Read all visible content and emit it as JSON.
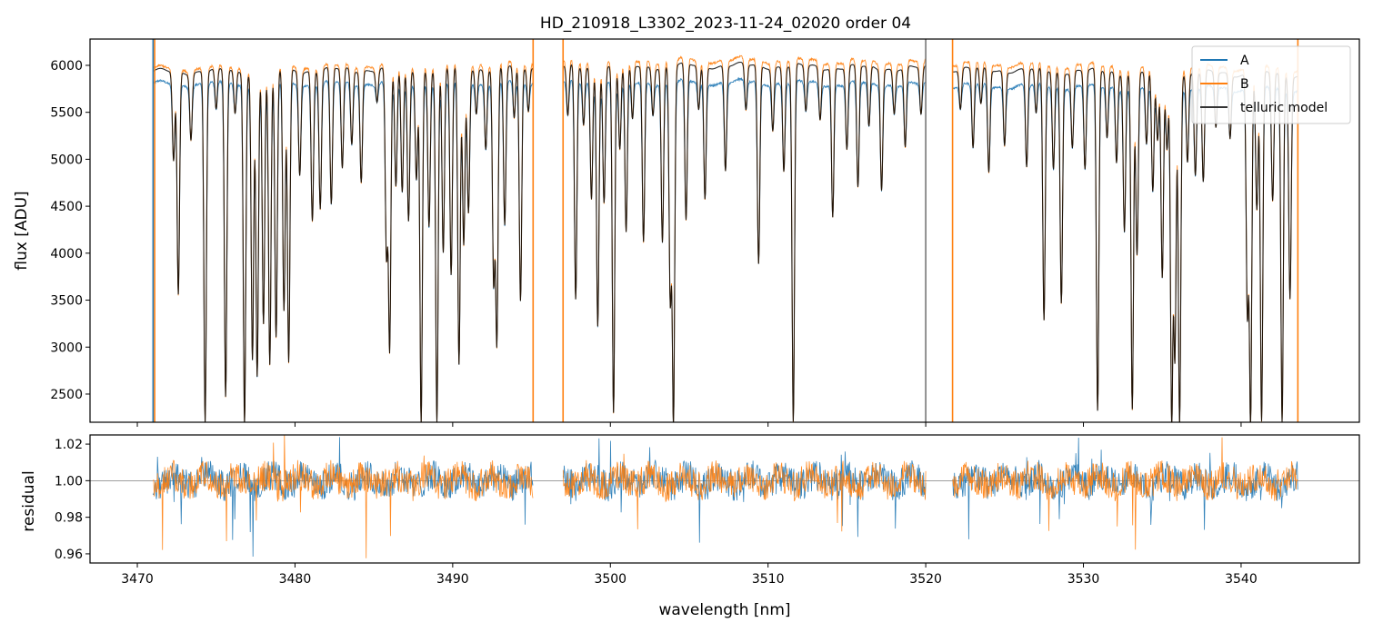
{
  "chart_data": [
    {
      "type": "line",
      "title": "HD_210918_L3302_2023-11-24_02020  order 04",
      "ylabel": "flux [ADU]",
      "xlabel": "",
      "xlim": [
        3467,
        3547.5
      ],
      "ylim": [
        2200,
        6280
      ],
      "yticks": [
        2500,
        3000,
        3500,
        4000,
        4500,
        5000,
        5500,
        6000
      ],
      "ytick_labels": [
        "2500",
        "3000",
        "3500",
        "4000",
        "4500",
        "5000",
        "5500",
        "6000"
      ],
      "legend": {
        "placement": "top-right",
        "entries": [
          "A",
          "B",
          "telluric model"
        ]
      },
      "gaps": [
        [
          3495.1,
          3497.0
        ],
        [
          3520.0,
          3521.7
        ]
      ],
      "series": [
        {
          "name": "A",
          "color": "#1f77b4",
          "continuum_left": 5800,
          "continuum_mid": 5820,
          "continuum_right": 5740
        },
        {
          "name": "B",
          "color": "#ff7f0e",
          "continuum_left": 5960,
          "continuum_mid": 6060,
          "continuum_right": 5960
        },
        {
          "name": "telluric model",
          "color": "#000000",
          "continuum_left": 5930,
          "continuum_mid": 6000,
          "continuum_right": 5900
        }
      ],
      "absorption_lines": [
        [
          3472.3,
          4980
        ],
        [
          3472.6,
          3560
        ],
        [
          3473.4,
          5230
        ],
        [
          3474.3,
          2200
        ],
        [
          3475.0,
          5500
        ],
        [
          3475.6,
          2470
        ],
        [
          3476.2,
          5480
        ],
        [
          3476.8,
          2200
        ],
        [
          3477.3,
          2870
        ],
        [
          3477.6,
          2690
        ],
        [
          3478.0,
          3250
        ],
        [
          3478.4,
          2800
        ],
        [
          3478.8,
          3090
        ],
        [
          3479.3,
          3380
        ],
        [
          3479.6,
          2830
        ],
        [
          3480.3,
          4850
        ],
        [
          3481.1,
          4350
        ],
        [
          3481.6,
          4480
        ],
        [
          3482.3,
          4500
        ],
        [
          3483.0,
          4890
        ],
        [
          3483.6,
          5160
        ],
        [
          3484.2,
          4770
        ],
        [
          3485.2,
          5620
        ],
        [
          3485.8,
          3960
        ],
        [
          3486.0,
          2960
        ],
        [
          3486.4,
          4700
        ],
        [
          3486.8,
          4630
        ],
        [
          3487.2,
          4340
        ],
        [
          3487.7,
          4800
        ],
        [
          3488.0,
          2200
        ],
        [
          3488.5,
          4300
        ],
        [
          3489.0,
          2200
        ],
        [
          3489.4,
          3990
        ],
        [
          3489.9,
          3760
        ],
        [
          3490.4,
          2800
        ],
        [
          3490.7,
          4080
        ],
        [
          3491.0,
          4440
        ],
        [
          3491.5,
          5490
        ],
        [
          3492.1,
          5130
        ],
        [
          3492.6,
          3690
        ],
        [
          3492.8,
          3030
        ],
        [
          3493.3,
          4290
        ],
        [
          3493.9,
          5410
        ],
        [
          3494.3,
          3490
        ],
        [
          3494.8,
          5520
        ],
        [
          3497.3,
          5440
        ],
        [
          3497.8,
          3500
        ],
        [
          3498.3,
          5370
        ],
        [
          3498.8,
          4580
        ],
        [
          3499.2,
          3240
        ],
        [
          3499.6,
          4550
        ],
        [
          3500.2,
          2300
        ],
        [
          3500.6,
          5100
        ],
        [
          3501.0,
          4200
        ],
        [
          3501.4,
          5410
        ],
        [
          3502.1,
          4120
        ],
        [
          3502.7,
          5490
        ],
        [
          3503.3,
          4120
        ],
        [
          3503.8,
          3500
        ],
        [
          3504.0,
          2200
        ],
        [
          3504.8,
          4330
        ],
        [
          3505.6,
          5520
        ],
        [
          3506.0,
          4580
        ],
        [
          3507.3,
          4880
        ],
        [
          3508.6,
          5510
        ],
        [
          3509.4,
          3880
        ],
        [
          3510.3,
          5320
        ],
        [
          3511.0,
          4880
        ],
        [
          3511.6,
          2200
        ],
        [
          3512.4,
          5500
        ],
        [
          3513.3,
          5430
        ],
        [
          3514.1,
          4390
        ],
        [
          3515.0,
          5100
        ],
        [
          3515.7,
          4690
        ],
        [
          3516.4,
          5330
        ],
        [
          3517.2,
          4690
        ],
        [
          3518.0,
          5500
        ],
        [
          3518.7,
          5120
        ],
        [
          3519.7,
          5460
        ],
        [
          3522.2,
          5530
        ],
        [
          3523.0,
          5110
        ],
        [
          3523.5,
          5560
        ],
        [
          3524.0,
          4860
        ],
        [
          3525.0,
          5160
        ],
        [
          3526.4,
          4910
        ],
        [
          3527.0,
          5460
        ],
        [
          3527.5,
          3280
        ],
        [
          3528.1,
          4900
        ],
        [
          3528.6,
          3480
        ],
        [
          3529.3,
          5130
        ],
        [
          3530.1,
          4890
        ],
        [
          3530.9,
          2310
        ],
        [
          3531.5,
          5230
        ],
        [
          3532.1,
          4970
        ],
        [
          3532.6,
          4250
        ],
        [
          3533.1,
          2340
        ],
        [
          3533.4,
          3980
        ],
        [
          3534.0,
          5140
        ],
        [
          3534.4,
          4630
        ],
        [
          3534.7,
          5190
        ],
        [
          3535.0,
          3740
        ],
        [
          3535.3,
          5100
        ],
        [
          3535.6,
          2200
        ],
        [
          3535.8,
          2900
        ],
        [
          3536.1,
          2200
        ],
        [
          3536.6,
          4970
        ],
        [
          3537.1,
          4830
        ],
        [
          3537.6,
          4740
        ],
        [
          3538.4,
          5330
        ],
        [
          3539.3,
          5230
        ],
        [
          3540.4,
          3350
        ],
        [
          3540.6,
          2200
        ],
        [
          3541.0,
          4460
        ],
        [
          3541.3,
          2200
        ],
        [
          3542.0,
          4550
        ],
        [
          3542.6,
          2200
        ],
        [
          3543.1,
          3530
        ]
      ]
    },
    {
      "type": "line",
      "ylabel": "residual",
      "xlabel": "wavelength [nm]",
      "xlim": [
        3467,
        3547.5
      ],
      "ylim": [
        0.955,
        1.025
      ],
      "yticks": [
        0.96,
        0.98,
        1.0,
        1.02
      ],
      "ytick_labels": [
        "0.96",
        "0.98",
        "1.00",
        "1.02"
      ],
      "xticks": [
        3470,
        3480,
        3490,
        3500,
        3510,
        3520,
        3530,
        3540
      ],
      "xtick_labels": [
        "3470",
        "3480",
        "3490",
        "3500",
        "3510",
        "3520",
        "3530",
        "3540"
      ],
      "reference_line": 1.0,
      "reference_line_color": "#7f7f7f",
      "series": [
        {
          "name": "A",
          "color": "#1f77b4",
          "mean": 1.0,
          "spread": 0.006
        },
        {
          "name": "B",
          "color": "#ff7f0e",
          "mean": 1.0,
          "spread": 0.006
        }
      ],
      "data_range": [
        3471.0,
        3543.6
      ],
      "gaps": [
        [
          3495.1,
          3497.0
        ],
        [
          3520.0,
          3521.7
        ]
      ]
    }
  ]
}
